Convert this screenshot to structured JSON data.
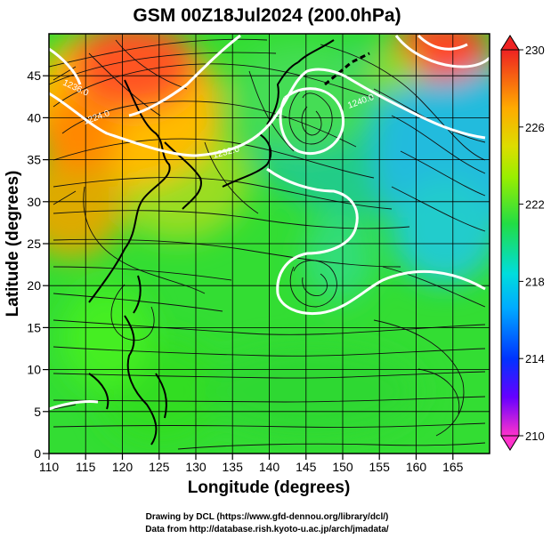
{
  "title": "GSM 00Z18Jul2024 (200.0hPa)",
  "xaxis": {
    "label": "Longitude (degrees)",
    "ticks": [
      "110",
      "115",
      "120",
      "125",
      "130",
      "135",
      "140",
      "145",
      "150",
      "155",
      "160",
      "165"
    ],
    "range": [
      110,
      170
    ]
  },
  "yaxis": {
    "label": "Latitude  (degrees)",
    "ticks": [
      "0",
      "5",
      "10",
      "15",
      "20",
      "25",
      "30",
      "35",
      "40",
      "45"
    ],
    "range": [
      0,
      50
    ]
  },
  "colorbar": {
    "labels": [
      "230",
      "226",
      "222",
      "218",
      "214",
      "210"
    ],
    "range": [
      210,
      230
    ],
    "colors": [
      "#ff33cc",
      "#5500ff",
      "#0033ff",
      "#00aaff",
      "#00ddcc",
      "#22dd44",
      "#88ee00",
      "#ddee00",
      "#ffbb00",
      "#ff7700",
      "#ee2222"
    ]
  },
  "contours": [
    {
      "label": "1224.0"
    },
    {
      "label": "1232.0"
    },
    {
      "label": "1240.0"
    },
    {
      "label": "1236.0"
    }
  ],
  "credits": [
    "Drawing by DCL (https://www.gfd-dennou.org/library/dcl/)",
    "Data from http://database.rish.kyoto-u.ac.jp/arch/jmadata/"
  ]
}
